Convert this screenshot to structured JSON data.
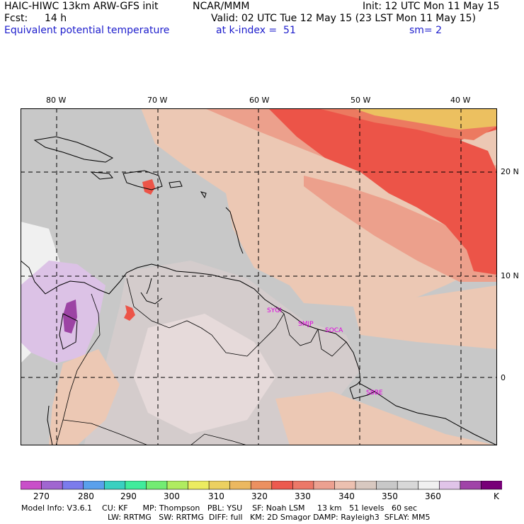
{
  "header": {
    "title": "HAIC-HIWC 13km ARW-GFS init",
    "org": "NCAR/MMM",
    "init": "Init: 12 UTC Mon 11 May 15",
    "fcst_label": "Fcst:",
    "fcst_value": "14 h",
    "valid": "Valid: 02 UTC Tue 12 May 15 (23 LST Mon 11 May 15)",
    "field": "Equivalent potential temperature",
    "level": "at k-index =  51",
    "smoothing": "sm= 2"
  },
  "map": {
    "lon_labels": [
      "80 W",
      "70 W",
      "60 W",
      "50 W",
      "40 W"
    ],
    "lat_labels": [
      "20 N",
      "10 N",
      "0"
    ],
    "stations": [
      "SYGI",
      "SMJP",
      "SOCA",
      "SBBE"
    ],
    "station_color": "#e000e0",
    "ocean_color": "#c8c8c8"
  },
  "colorbar": {
    "colors": [
      "#c94fc9",
      "#a066d0",
      "#7b7bec",
      "#5aa0ec",
      "#3ad0c0",
      "#40ec9c",
      "#73ec73",
      "#b0ec60",
      "#ecec60",
      "#ecd060",
      "#ecb860",
      "#ec9060",
      "#ec5a4f",
      "#ec7868",
      "#eca090",
      "#ecc0b0",
      "#d8c8c0",
      "#c8c8c8",
      "#d8d8d8",
      "#f0f0f0",
      "#e0c4e8",
      "#a044a8",
      "#780078"
    ],
    "labels": [
      "270",
      "280",
      "290",
      "300",
      "310",
      "320",
      "330",
      "340",
      "350",
      "360"
    ],
    "unit": "K"
  },
  "footer": {
    "line1": "Model Info: V3.6.1    CU: KF      MP: Thompson   PBL: YSU    SF: Noah LSM     13 km   51 levels   60 sec",
    "line2": "LW: RRTMG   SW: RRTMG  DIFF: full   KM: 2D Smagor DAMP: Rayleigh3  SFLAY: MM5"
  }
}
